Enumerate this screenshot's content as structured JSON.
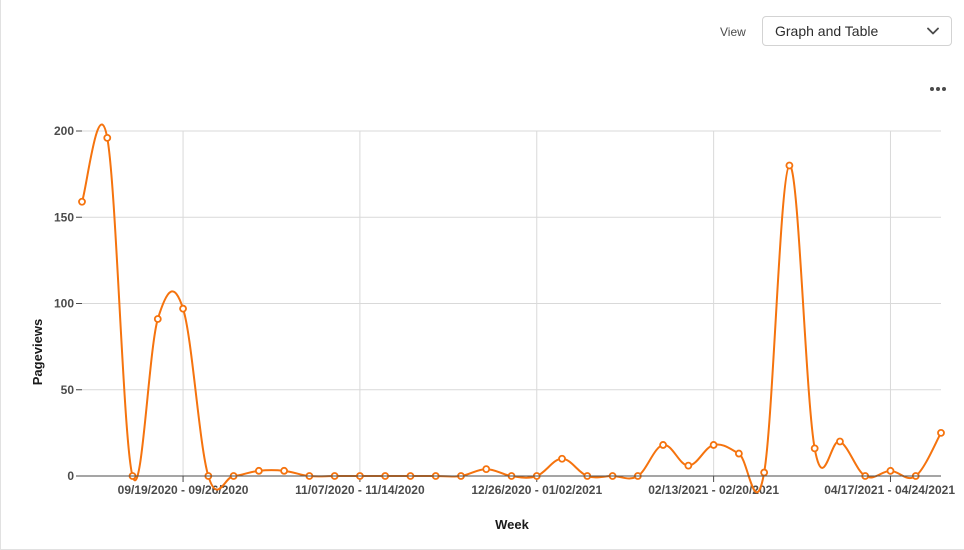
{
  "view": {
    "label": "View",
    "selected": "Graph and Table"
  },
  "icons": {
    "dropdown": "chevron-down-icon",
    "more": "more-horizontal-icon"
  },
  "colors": {
    "series": "#f5730e",
    "grid": "#d9d9d9",
    "axis": "#4b4b4b"
  },
  "chart_data": {
    "type": "line",
    "xlabel": "Week",
    "ylabel": "Pageviews",
    "ylim": [
      0,
      200
    ],
    "yticks": [
      0,
      50,
      100,
      150,
      200
    ],
    "grid": true,
    "x_tick_labels": [
      "09/19/2020 - 09/26/2020",
      "11/07/2020 - 11/14/2020",
      "12/26/2020 - 01/02/2021",
      "02/13/2021 - 02/20/2021",
      "04/17/2021 - 04/24/2021"
    ],
    "series": [
      {
        "values": [
          159,
          196,
          0,
          91,
          97,
          0,
          0,
          3,
          3,
          0,
          0,
          0,
          0,
          0,
          0,
          0,
          4,
          0,
          0,
          10,
          0,
          0,
          0,
          18,
          6,
          18,
          13,
          2,
          180,
          16,
          20,
          0,
          3,
          0,
          25
        ]
      }
    ]
  }
}
